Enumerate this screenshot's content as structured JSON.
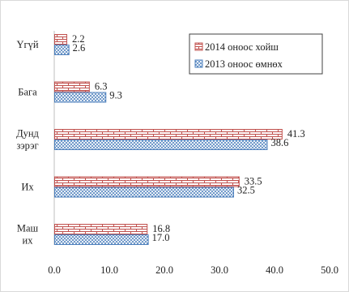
{
  "chart_data": {
    "type": "bar",
    "orientation": "horizontal",
    "categories": [
      "Үгүй",
      "Бага",
      "Дунд\nзэрэг",
      "Их",
      "Маш\nих"
    ],
    "series": [
      {
        "name": "2014 оноос хойш",
        "values": [
          2.2,
          6.3,
          41.3,
          33.5,
          16.8
        ],
        "color": "#c0504d",
        "pattern": "bricks"
      },
      {
        "name": "2013 оноос өмнөх",
        "values": [
          2.6,
          9.3,
          38.6,
          32.5,
          17.0
        ],
        "color": "#4f81bd",
        "pattern": "crosshatch"
      }
    ],
    "value_labels": [
      [
        "2.2",
        "6.3",
        "41.3",
        "33.5",
        "16.8"
      ],
      [
        "2.6",
        "9.3",
        "38.6",
        "32.5",
        "17.0"
      ]
    ],
    "xlim": [
      0,
      50
    ],
    "xticks": [
      "0.0",
      "10.0",
      "20.0",
      "30.0",
      "40.0",
      "50.0"
    ],
    "grid": false,
    "legend_position": "top-right",
    "title": "",
    "xlabel": "",
    "ylabel": ""
  }
}
